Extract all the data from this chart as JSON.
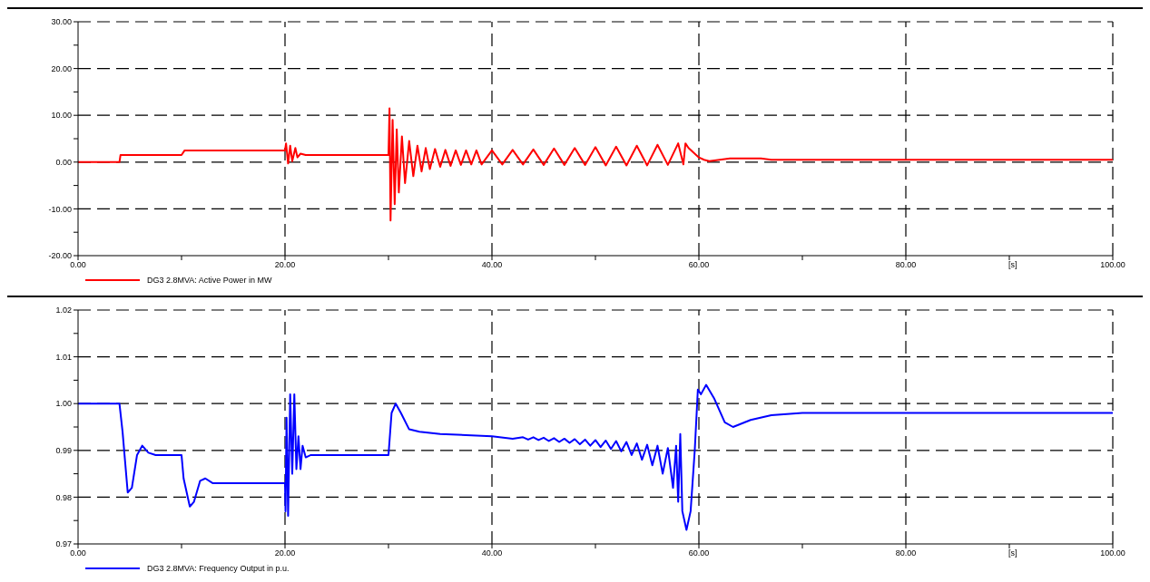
{
  "chart_data": [
    {
      "type": "line",
      "xlabel": "[s]",
      "legend": "bottom left",
      "grid": true,
      "marker": "none",
      "line_style": "solid",
      "xlim": [
        0,
        100
      ],
      "xticks": [
        {
          "value": 0,
          "label": "0.00"
        },
        {
          "value": 10,
          "label": null
        },
        {
          "value": 20,
          "label": "20.00"
        },
        {
          "value": 30,
          "label": null
        },
        {
          "value": 40,
          "label": "40.00"
        },
        {
          "value": 50,
          "label": null
        },
        {
          "value": 60,
          "label": "60.00"
        },
        {
          "value": 70,
          "label": null
        },
        {
          "value": 80,
          "label": "80.00"
        },
        {
          "value": 90,
          "label": null
        },
        {
          "value": 100,
          "label": "100.00"
        }
      ],
      "ylim": [
        -20,
        30
      ],
      "yticks": [
        {
          "value": -20,
          "label": "-20.00"
        },
        {
          "value": -15,
          "label": null
        },
        {
          "value": -10,
          "label": "-10.00"
        },
        {
          "value": -5,
          "label": null
        },
        {
          "value": 0,
          "label": "0.00"
        },
        {
          "value": 5,
          "label": null
        },
        {
          "value": 10,
          "label": "10.00"
        },
        {
          "value": 15,
          "label": null
        },
        {
          "value": 20,
          "label": "20.00"
        },
        {
          "value": 25,
          "label": null
        },
        {
          "value": 30,
          "label": "30.00"
        }
      ],
      "series": [
        {
          "name": "DG3 2.8MVA: Active Power in MW",
          "color": "#ff0000",
          "x": [
            0,
            4,
            4.1,
            10,
            10.3,
            20,
            20.1,
            20.3,
            20.5,
            20.7,
            21,
            21.2,
            21.5,
            22,
            30,
            30.1,
            30.2,
            30.4,
            30.6,
            30.8,
            31,
            31.3,
            31.6,
            32,
            32.4,
            32.8,
            33.2,
            33.6,
            34,
            34.5,
            35,
            35.5,
            36,
            36.5,
            37,
            37.5,
            38,
            38.5,
            39,
            40,
            41,
            42,
            43,
            44,
            45,
            46,
            47,
            48,
            49,
            50,
            51,
            52,
            53,
            54,
            55,
            56,
            57,
            58,
            58.5,
            58.7,
            59,
            59.5,
            60,
            60.5,
            61,
            62,
            63,
            66,
            67,
            100
          ],
          "values": [
            0,
            0,
            1.5,
            1.5,
            2.5,
            2.5,
            4,
            -0.3,
            3.5,
            0.2,
            3,
            1,
            1.8,
            1.5,
            1.5,
            11.5,
            -12.5,
            9,
            -9,
            7,
            -6.5,
            5.5,
            -4.5,
            4.5,
            -3,
            3.5,
            -2,
            3,
            -1.5,
            2.8,
            -1,
            2.6,
            -0.8,
            2.5,
            -0.6,
            2.5,
            -0.5,
            2.5,
            -0.5,
            2.5,
            -0.5,
            2.6,
            -0.5,
            2.7,
            -0.6,
            2.9,
            -0.6,
            3,
            -0.6,
            3.2,
            -0.7,
            3.3,
            -0.7,
            3.5,
            -0.7,
            3.7,
            -0.6,
            4,
            -0.5,
            4,
            3,
            2,
            1,
            0.5,
            0.2,
            0.5,
            0.8,
            0.8,
            0.5,
            0.5
          ]
        }
      ]
    },
    {
      "type": "line",
      "xlabel": "[s]",
      "legend": "bottom left",
      "grid": true,
      "marker": "none",
      "line_style": "solid",
      "xlim": [
        0,
        100
      ],
      "xticks": [
        {
          "value": 0,
          "label": "0.00"
        },
        {
          "value": 10,
          "label": null
        },
        {
          "value": 20,
          "label": "20.00"
        },
        {
          "value": 30,
          "label": null
        },
        {
          "value": 40,
          "label": "40.00"
        },
        {
          "value": 50,
          "label": null
        },
        {
          "value": 60,
          "label": "60.00"
        },
        {
          "value": 70,
          "label": null
        },
        {
          "value": 80,
          "label": "80.00"
        },
        {
          "value": 90,
          "label": null
        },
        {
          "value": 100,
          "label": "100.00"
        }
      ],
      "ylim": [
        0.97,
        1.02
      ],
      "yticks": [
        {
          "value": 0.97,
          "label": "0.97"
        },
        {
          "value": 0.975,
          "label": null
        },
        {
          "value": 0.98,
          "label": "0.98"
        },
        {
          "value": 0.985,
          "label": null
        },
        {
          "value": 0.99,
          "label": "0.99"
        },
        {
          "value": 0.995,
          "label": null
        },
        {
          "value": 1.0,
          "label": "1.00"
        },
        {
          "value": 1.005,
          "label": null
        },
        {
          "value": 1.01,
          "label": "1.01"
        },
        {
          "value": 1.015,
          "label": null
        },
        {
          "value": 1.02,
          "label": "1.02"
        }
      ],
      "series": [
        {
          "name": "DG3 2.8MVA: Frequency Output in p.u.",
          "color": "#0000ff",
          "x": [
            0,
            4,
            4.3,
            4.8,
            5.2,
            5.7,
            6.2,
            6.8,
            7.5,
            10,
            10.2,
            10.8,
            11.2,
            11.8,
            12.3,
            13,
            20,
            20.05,
            20.15,
            20.3,
            20.5,
            20.7,
            20.9,
            21.1,
            21.3,
            21.5,
            21.7,
            22,
            22.5,
            30,
            30.3,
            30.7,
            31.2,
            32,
            33,
            35,
            40,
            42,
            43,
            43.5,
            44,
            44.5,
            45,
            45.5,
            46,
            46.5,
            47,
            47.5,
            48,
            48.5,
            49,
            49.5,
            50,
            50.5,
            51,
            51.5,
            52,
            52.5,
            53,
            53.5,
            54,
            54.5,
            55,
            55.5,
            56,
            56.5,
            57,
            57.5,
            57.8,
            58,
            58.2,
            58.4,
            58.8,
            59.2,
            59.6,
            59.9,
            60.2,
            60.7,
            61.5,
            62.5,
            63.3,
            65,
            67,
            70,
            100
          ],
          "values": [
            1.0,
            1.0,
            0.994,
            0.981,
            0.982,
            0.989,
            0.991,
            0.9895,
            0.989,
            0.989,
            0.984,
            0.978,
            0.979,
            0.9835,
            0.984,
            0.983,
            0.983,
            0.977,
            0.997,
            0.976,
            1.002,
            0.985,
            1.002,
            0.986,
            0.993,
            0.986,
            0.991,
            0.9885,
            0.989,
            0.989,
            0.998,
            1.0,
            0.998,
            0.9945,
            0.994,
            0.9935,
            0.993,
            0.9925,
            0.9928,
            0.9923,
            0.9928,
            0.9922,
            0.9927,
            0.992,
            0.9926,
            0.9918,
            0.9925,
            0.9916,
            0.9924,
            0.9913,
            0.9923,
            0.991,
            0.9922,
            0.9907,
            0.9921,
            0.9903,
            0.992,
            0.9898,
            0.9918,
            0.989,
            0.9915,
            0.988,
            0.9912,
            0.9868,
            0.991,
            0.985,
            0.9905,
            0.982,
            0.991,
            0.979,
            0.9935,
            0.977,
            0.973,
            0.977,
            0.99,
            1.003,
            1.002,
            1.004,
            1.001,
            0.996,
            0.995,
            0.9965,
            0.9975,
            0.998,
            0.998
          ]
        }
      ]
    }
  ]
}
